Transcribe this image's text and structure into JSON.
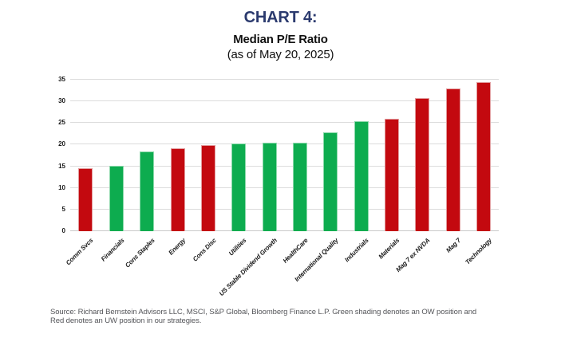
{
  "header": {
    "chart_label": "CHART 4:",
    "title": "Median P/E Ratio",
    "subtitle": "(as of May 20, 2025)"
  },
  "chart_data": {
    "type": "bar",
    "title": "Median P/E Ratio",
    "subtitle": "(as of May 20, 2025)",
    "categories": [
      "Comm Svcs",
      "Financials",
      "Cons Staples",
      "Energy",
      "Cons Disc",
      "Utilities",
      "US Stable Dividend Growth",
      "HealthCare",
      "International Quality",
      "Industrials",
      "Materials",
      "Mag 7 ex NVDA",
      "Mag 7",
      "Technology"
    ],
    "values": [
      14.6,
      15.1,
      18.5,
      19.1,
      19.9,
      20.3,
      20.5,
      20.5,
      22.8,
      25.5,
      26.0,
      30.7,
      33.0,
      34.4
    ],
    "positions": [
      "UW",
      "OW",
      "OW",
      "UW",
      "UW",
      "OW",
      "OW",
      "OW",
      "OW",
      "OW",
      "UW",
      "UW",
      "UW",
      "UW"
    ],
    "xlabel": "",
    "ylabel": "",
    "ylim": [
      0,
      35
    ],
    "yticks": [
      0,
      5,
      10,
      15,
      20,
      25,
      30,
      35
    ],
    "grid": "horizontal",
    "legend_position": "none",
    "legend_note": "Green = OW position, Red = UW position"
  },
  "colors": {
    "title_navy": "#2B3A6E",
    "ow_green": "#0DAC4F",
    "ow_green_border": "#8BD8AA",
    "uw_red": "#C3090F",
    "uw_red_border": "#E29B9D",
    "gridline": "#DCDCDC",
    "baseline": "#C9C9C9",
    "axis_text": "#1A1A1A",
    "source_text": "#55565A"
  },
  "footer": {
    "source_line1": "Source: Richard Bernstein Advisors LLC, MSCI, S&P Global, Bloomberg Finance L.P. Green shading denotes an OW position and",
    "source_line2": "Red denotes an UW position in our strategies."
  }
}
